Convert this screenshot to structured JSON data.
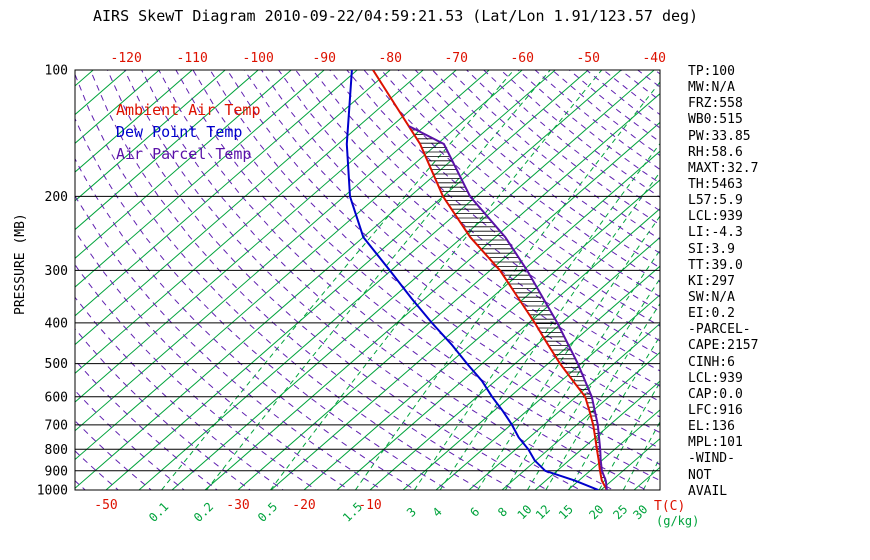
{
  "title": "AIRS SkewT Diagram 2010-09-22/04:59:21.53 (Lat/Lon 1.91/123.57 deg)",
  "colors": {
    "ambient": "#dd1100",
    "dewpoint": "#0000cc",
    "parcel": "#5a12a8",
    "isotherm": "#00a33c",
    "mixing": "#00a33c",
    "adiabat": "#6020b0",
    "axis": "#000000",
    "temp_labels": "#dd1100"
  },
  "legend": [
    {
      "label": "Ambient Air Temp",
      "color_key": "ambient"
    },
    {
      "label": "Dew Point Temp",
      "color_key": "dewpoint"
    },
    {
      "label": "Air Parcel Temp",
      "color_key": "parcel"
    }
  ],
  "y_axis": {
    "label": "PRESSURE (MB)",
    "ticks": [
      100,
      200,
      300,
      400,
      500,
      600,
      700,
      800,
      900,
      1000
    ]
  },
  "top_axis": {
    "ticks": [
      -120,
      -110,
      -100,
      -90,
      -80,
      -70,
      -60,
      -50,
      -40
    ]
  },
  "bottom_axis": {
    "temp_ticks": [
      -50,
      -30,
      -20,
      -10
    ],
    "temp_unit": "T(C)",
    "mixing_ratio_ticks": [
      0.1,
      0.2,
      0.5,
      1.5,
      3,
      4,
      6,
      8,
      10,
      12,
      15,
      20,
      25,
      30
    ],
    "mixing_unit": "(g/kg)"
  },
  "stats_panel": [
    "TP:100",
    "MW:N/A",
    "FRZ:558",
    "WB0:515",
    "PW:33.85",
    "RH:58.6",
    "MAXT:32.7",
    "TH:5463",
    "L57:5.9",
    "LCL:939",
    "LI:-4.3",
    "SI:3.9",
    "TT:39.0",
    "KI:297",
    "SW:N/A",
    "EI:0.2",
    "-PARCEL-",
    "CAPE:2157",
    "CINH:6",
    "LCL:939",
    "CAP:0.0",
    "LFC:916",
    "EL:136",
    "MPL:101",
    "-WIND-",
    "NOT",
    "AVAIL"
  ],
  "chart_data": {
    "type": "line",
    "title": "AIRS SkewT Diagram 2010-09-22/04:59:21.53",
    "xlabel": "T(C) (skewed temperature axis)",
    "ylabel": "PRESSURE (MB)",
    "y_scale": "log",
    "ylim": [
      1000,
      100
    ],
    "isotherm_step_c": 5,
    "legend_position": "upper-left-inside",
    "grid": "skewt (isotherms, mixing-ratio lines, adiabats, pressure lines)",
    "series": [
      {
        "name": "Ambient Air Temp",
        "color_key": "ambient",
        "points_p_t": [
          [
            1000,
            25.9
          ],
          [
            950,
            23.5
          ],
          [
            900,
            21.5
          ],
          [
            850,
            19.5
          ],
          [
            800,
            17.3
          ],
          [
            750,
            15.0
          ],
          [
            700,
            12.5
          ],
          [
            650,
            9.6
          ],
          [
            600,
            6.4
          ],
          [
            550,
            1.8
          ],
          [
            500,
            -3.2
          ],
          [
            450,
            -8.4
          ],
          [
            400,
            -14.1
          ],
          [
            350,
            -20.8
          ],
          [
            300,
            -28.5
          ],
          [
            250,
            -38.8
          ],
          [
            200,
            -50.0
          ],
          [
            150,
            -62.6
          ],
          [
            100,
            -82.6
          ]
        ]
      },
      {
        "name": "Dew Point Temp",
        "color_key": "dewpoint",
        "points_p_t": [
          [
            1000,
            24.6
          ],
          [
            950,
            19.4
          ],
          [
            900,
            13.2
          ],
          [
            850,
            9.8
          ],
          [
            800,
            6.9
          ],
          [
            750,
            3.4
          ],
          [
            700,
            0.2
          ],
          [
            650,
            -3.5
          ],
          [
            600,
            -7.7
          ],
          [
            550,
            -12.0
          ],
          [
            500,
            -17.3
          ],
          [
            450,
            -23.0
          ],
          [
            400,
            -29.7
          ],
          [
            350,
            -37.0
          ],
          [
            300,
            -45.2
          ],
          [
            250,
            -55.0
          ],
          [
            200,
            -64.1
          ],
          [
            150,
            -73.7
          ],
          [
            100,
            -85.8
          ]
        ]
      },
      {
        "name": "Air Parcel Temp",
        "color_key": "parcel",
        "hatch_against": "Ambient Air Temp",
        "points_p_t": [
          [
            1000,
            25.9
          ],
          [
            950,
            24.1
          ],
          [
            900,
            21.8
          ],
          [
            850,
            19.8
          ],
          [
            800,
            17.8
          ],
          [
            700,
            13.2
          ],
          [
            600,
            7.4
          ],
          [
            500,
            -0.5
          ],
          [
            400,
            -10.7
          ],
          [
            300,
            -24.4
          ],
          [
            250,
            -33.5
          ],
          [
            200,
            -45.9
          ],
          [
            150,
            -59.0
          ],
          [
            136,
            -67.4
          ]
        ]
      }
    ]
  }
}
